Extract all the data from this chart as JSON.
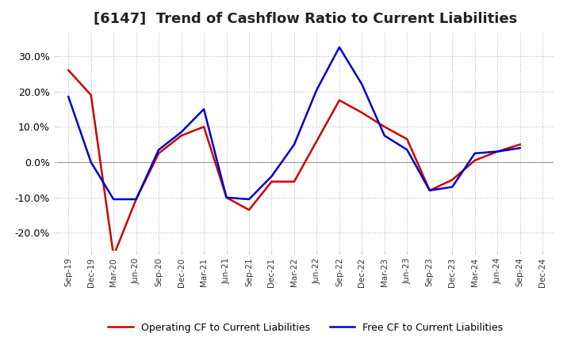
{
  "title": "[6147]  Trend of Cashflow Ratio to Current Liabilities",
  "x_labels": [
    "Sep-19",
    "Dec-19",
    "Mar-20",
    "Jun-20",
    "Sep-20",
    "Dec-20",
    "Mar-21",
    "Jun-21",
    "Sep-21",
    "Dec-21",
    "Mar-22",
    "Jun-22",
    "Sep-22",
    "Dec-22",
    "Mar-23",
    "Jun-23",
    "Sep-23",
    "Dec-23",
    "Mar-24",
    "Jun-24",
    "Sep-24",
    "Dec-24"
  ],
  "operating_cf": [
    0.26,
    0.19,
    -0.265,
    -0.105,
    0.025,
    0.075,
    0.1,
    -0.1,
    -0.135,
    -0.055,
    -0.055,
    0.06,
    0.175,
    0.14,
    0.1,
    0.065,
    -0.08,
    -0.05,
    0.005,
    0.03,
    0.05,
    null
  ],
  "free_cf": [
    0.185,
    0.0,
    -0.105,
    -0.105,
    0.035,
    0.085,
    0.15,
    -0.1,
    -0.105,
    -0.04,
    0.05,
    0.205,
    0.325,
    0.22,
    0.075,
    0.035,
    -0.08,
    -0.07,
    0.025,
    0.03,
    0.04,
    null
  ],
  "operating_color": "#cc0000",
  "free_color": "#0000cc",
  "ylim": [
    -0.25,
    0.37
  ],
  "yticks": [
    -0.2,
    -0.1,
    0.0,
    0.1,
    0.2,
    0.3
  ],
  "background_color": "#ffffff",
  "grid_color": "#bbbbbb",
  "legend_operating": "Operating CF to Current Liabilities",
  "legend_free": "Free CF to Current Liabilities",
  "title_fontsize": 13,
  "linewidth": 1.8
}
